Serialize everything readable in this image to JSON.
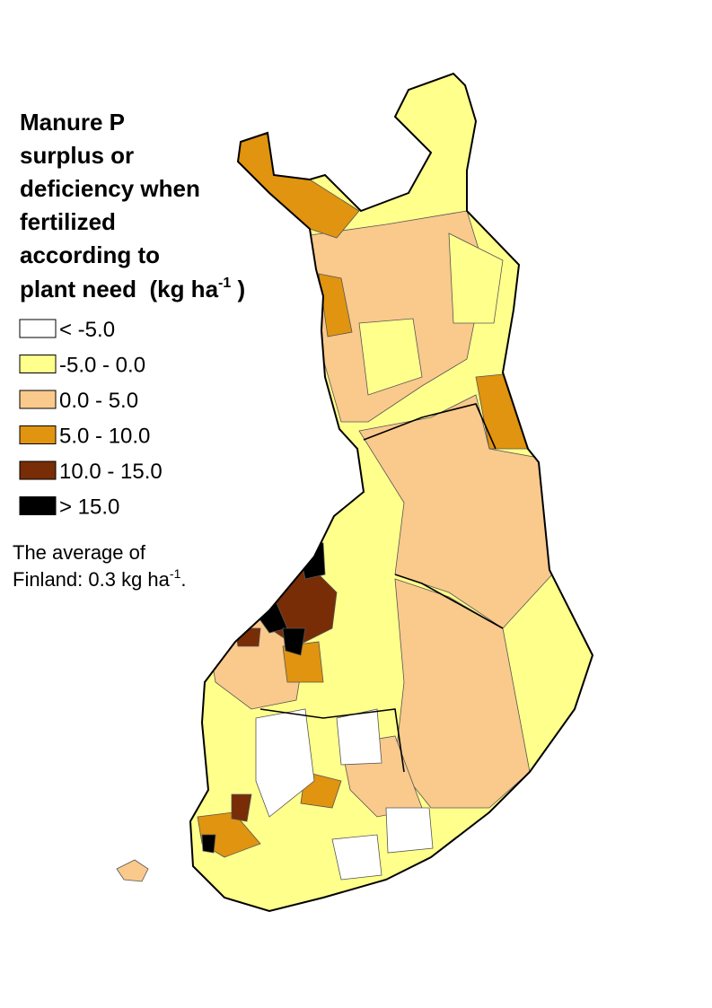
{
  "title": {
    "lines": [
      "Manure P",
      "surplus or",
      "deficiency when",
      "fertilized",
      "according to"
    ],
    "last": {
      "text": "plant need  (kg ha",
      "sup": "-1",
      "tail": " )"
    }
  },
  "legend": {
    "items": [
      {
        "label": "< -5.0",
        "color": "#ffffff"
      },
      {
        "label": "-5.0 - 0.0",
        "color": "#ffff8c"
      },
      {
        "label": "0.0 - 5.0",
        "color": "#fac98c"
      },
      {
        "label": "5.0 - 10.0",
        "color": "#e0940f"
      },
      {
        "label": "10.0 - 15.0",
        "color": "#782d06"
      },
      {
        "label": "> 15.0",
        "color": "#000000"
      }
    ]
  },
  "note": {
    "line1": "The average of",
    "line2": "Finland: 0.3 kg ha",
    "sup": "-1",
    "tail": "."
  }
}
